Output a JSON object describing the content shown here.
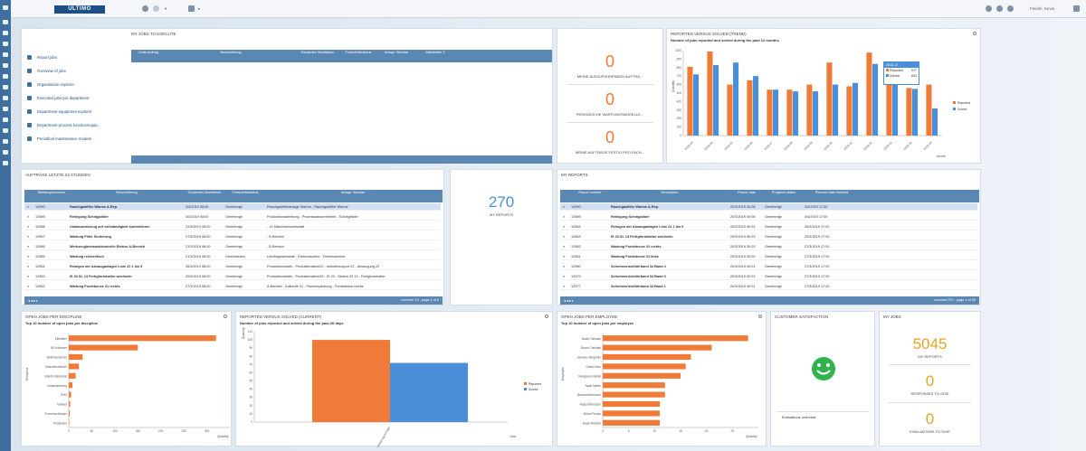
{
  "app": {
    "logo": "ULTIMO",
    "user": "Fleider, Kevin"
  },
  "jobs_to_execute": {
    "title": "MY JOBS TO EXECUTE",
    "links": [
      "Report jobs",
      "Overview of jobs",
      "Organisation explorer",
      "Executed jobs per department",
      "Department equipment explorer",
      "Department process function/equip...",
      "Periodical maintenance models"
    ],
    "columns": [
      "Code Auftrag",
      "Beschreibung",
      "Geplantes Startdatum",
      "Fortschrittsstatus",
      "Anlage Stickbar",
      "Mitarbeiter 2"
    ]
  },
  "kpis_small": [
    {
      "value": "0",
      "label": "MEINE AUSZUFÜHRENDEN AUFTRÄ..."
    },
    {
      "value": "0",
      "label": "PERIODISCHE WARTUNGSMODELLE..."
    },
    {
      "value": "0",
      "label": "MEINE AUFTRÄGE FERTIG PRO FACH..."
    }
  ],
  "trend": {
    "title": "REPORTED VERSUS SOLVED (TREND)",
    "subtitle": "Number of jobs reported and solved during the past 12 months",
    "tooltip": {
      "header": "2018-12",
      "rows": [
        {
          "label": "Reported",
          "value": "977"
        },
        {
          "label": "Solved",
          "value": "843"
        }
      ]
    }
  },
  "auftraege": {
    "title": "AUFTRÄGE LETZTE 24 STUNDEN",
    "columns": [
      "Meldungsnummer",
      "Beschreibung",
      "Geplantes Startdatum",
      "Fortschrittsstatus",
      "Anlage Stickbar"
    ],
    "rows": [
      [
        "12990",
        "Rauchgasfilter Warme A-Rep.",
        "3/4/2019 08:00",
        "Genehmigt",
        "Rauchgasfilteranlage Warme - Rauchgasfilter Warme"
      ],
      [
        "12989",
        "Reinigung Schrägbilder",
        "3/4/2019 08:00",
        "Genehmigt",
        "Produktionsabteilung - Prozesswasserbetrieb - Schrägbilder"
      ],
      [
        "12988",
        "Umbauwerkzeug auf vollständigkeit kontrollieren",
        "22/3/2019 08:00",
        "Genehmigt",
        "- 13 Maschinenwerkstatt"
      ],
      [
        "12987",
        "Wartung Filter Sortierung",
        "27/3/2019 08:00",
        "Genehmigt",
        "- B Bereich"
      ],
      [
        "12986",
        "Werkzeugbestandskontrolle Elektro A-Bereich",
        "21/3/2019 08:00",
        "Genehmigt",
        "- B Bereich"
      ],
      [
        "12985",
        "Wartung reicheritsch",
        "21/3/2019 08:00",
        "Geschlossen",
        "Lehrlingswerkstatt - Drehmaschine - Drehmaschine"
      ],
      [
        "12984",
        "Reinigen der Absauganlagen Linie 22 1 bis 5",
        "26/3/2019 08:00",
        "Genehmigt",
        "Produktionshalle - Produktionslinie22 - Artikeltransport 22 - Absaugung 22"
      ],
      [
        "12983",
        "IS 33 St. 13 Fertigformhalter wechseln",
        "20/3/2019 08:00",
        "Genehmigt",
        "Produktionshalle - Produktionslinie33 - IS 33 - Station 33 13 - Fertigformhalter"
      ],
      [
        "12982",
        "Wartung Fordebeuse 31 rechts",
        "27/3/2019 08:00",
        "Genehmigt",
        "A-Bereich - Kalbeule 31 - Packverpackung - Fordebeuse rechts"
      ]
    ],
    "footer": "nummer 19 - page 1 of 9"
  },
  "my_reports_kpi": {
    "value": "270",
    "label": "MY REPORTS"
  },
  "my_reports": {
    "title": "MY REPORTS",
    "columns": [
      "Report number",
      "Description",
      "Report date",
      "Progress status",
      "Planned date finished"
    ],
    "rows": [
      [
        "12990",
        "Rauchgasfilter Warme A-Rep.",
        "20/3/2019 00:08",
        "Genehmigt",
        "3/4/2019 17:00"
      ],
      [
        "12989",
        "Reinigung Schrägbilder",
        "20/3/2019 00:08",
        "Genehmigt",
        "3/4/2019 17:00"
      ],
      [
        "12984",
        "Reinigen der Absauganlagen Linie 22 1 bis 5",
        "20/3/2019 00:04",
        "Genehmigt",
        "26/3/2019 17:00"
      ],
      [
        "12983",
        "IS 33 St. 13 Fertigformhalter wechseln",
        "20/3/2019 00:03",
        "Genehmigt",
        "20/3/2019 17:00"
      ],
      [
        "12982",
        "Wartung Fordebeuse 31 rechts",
        "20/3/2019 00:03",
        "Genehmigt",
        "27/3/2019 17:00"
      ],
      [
        "12981",
        "Wartung Fordebeuse 31 links",
        "20/3/2019 00:02",
        "Genehmigt",
        "27/3/2019 17:00"
      ],
      [
        "12980",
        "Scherbenrückführband 34 Band 4",
        "20/3/2019 00:01",
        "Genehmigt",
        "27/3/2019 17:00"
      ],
      [
        "12979",
        "Scherbenrückführband 34 Band 3",
        "20/3/2019 00:01",
        "Genehmigt",
        "27/3/2019 17:00"
      ],
      [
        "12977",
        "Scherbenrückführband 34 Band 1",
        "20/3/2019 00:01",
        "Genehmigt",
        "27/3/2019 17:00"
      ]
    ],
    "footer": "nummer 270 - page 1 of 30"
  },
  "discipline": {
    "title": "OPEN JOBS PER DISCIPLINE",
    "subtitle": "Top 10 number of open jobs per discipline"
  },
  "current": {
    "title": "REPORTED VERSUS SOLVED (CURRENT)",
    "subtitle": "Number of jobs reported and solved during the past 30 days"
  },
  "employee": {
    "title": "OPEN JOBS PER EMPLOYEE",
    "subtitle": "Top 10 number of open jobs per employee"
  },
  "satisfaction": {
    "title": "CUSTOMER SATISFACTION",
    "link": "Evaluations overview"
  },
  "myjobs": {
    "title": "MY JOBS",
    "kpis": [
      {
        "value": "5045",
        "label": "MY REPORTS"
      },
      {
        "value": "0",
        "label": "RESPONSES TO GIVE"
      },
      {
        "value": "0",
        "label": "EVALUATIONS TO GIVE"
      }
    ]
  },
  "chart_data": [
    {
      "type": "bar",
      "title": "Number of jobs reported and solved during the past 12 months",
      "xlabel": "Month",
      "ylabel": "Quantity",
      "categories": [
        "2018-03",
        "2018-04",
        "2018-05",
        "2018-06",
        "2018-07",
        "2018-08",
        "2018-09",
        "2018-10",
        "2018-11",
        "2018-12",
        "2019-01",
        "2019-02",
        "2019-03"
      ],
      "series": [
        {
          "name": "Reported",
          "values": [
            810,
            990,
            600,
            650,
            540,
            540,
            600,
            860,
            580,
            977,
            620,
            560,
            600
          ]
        },
        {
          "name": "Solved",
          "values": [
            720,
            830,
            860,
            700,
            540,
            520,
            520,
            600,
            620,
            843,
            700,
            550,
            320
          ]
        }
      ],
      "ylim": [
        0,
        1000
      ],
      "color": {
        "Reported": "#f07b39",
        "Solved": "#4a90d9"
      },
      "legend": "right"
    },
    {
      "type": "bar",
      "orientation": "horizontal",
      "title": "Top 10 number of open jobs per discipline",
      "xlabel": "Quantity",
      "ylabel": "Discipline",
      "categories": [
        "Elektriker",
        "IB Schlosser",
        "Betriebsschloss",
        "Maschinenführer",
        "Elektro Mechanic",
        "Instandsetzung",
        "EHG",
        "Einkauf",
        "Formenschlosser",
        "Produktion"
      ],
      "values": [
        320,
        150,
        30,
        22,
        15,
        8,
        5,
        3,
        2,
        1
      ],
      "xlim": [
        0,
        350
      ]
    },
    {
      "type": "bar",
      "title": "Number of jobs reported and solved during the past 30 days",
      "ylabel": "Quantity",
      "xlabel": "Jobs",
      "categories": [
        "Instandhaltung/Anfrage"
      ],
      "series": [
        {
          "name": "Reported",
          "values": [
            100
          ]
        },
        {
          "name": "Solved",
          "values": [
            72
          ]
        }
      ],
      "ylim": [
        0,
        110
      ]
    },
    {
      "type": "bar",
      "orientation": "horizontal",
      "title": "Top 10 number of open jobs per employee",
      "xlabel": "Quantity",
      "ylabel": "Employee",
      "categories": [
        "Naab Christian",
        "Braun Christian",
        "Schwarz Benjamin",
        "Ganik Hans",
        "Mangiarra Harald",
        "Naab Martin",
        "Baumannbenutzer",
        "Ruppchbenutzer",
        "Böhm Florian",
        "Naab Winfried"
      ],
      "values": [
        28,
        21,
        17,
        16,
        15,
        12,
        12,
        11,
        11,
        11
      ],
      "xlim": [
        0,
        30
      ]
    }
  ]
}
